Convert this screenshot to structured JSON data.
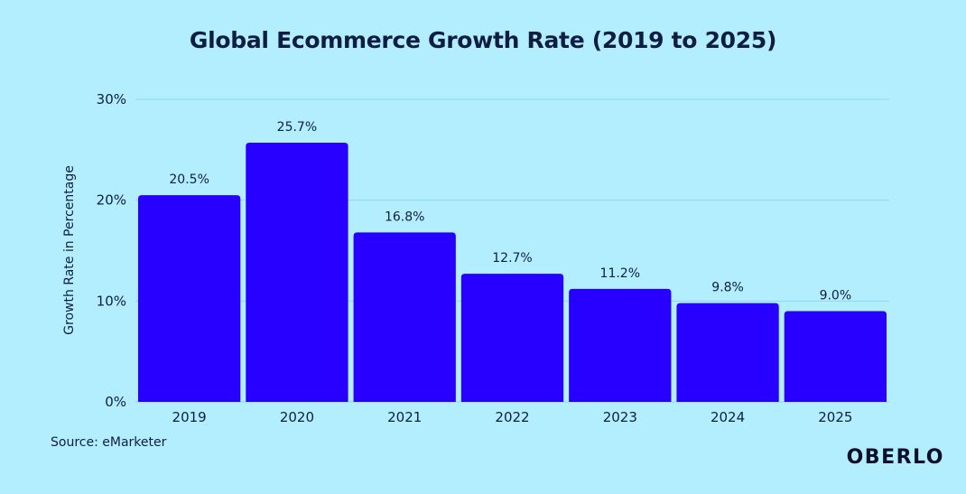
{
  "chart_data": {
    "type": "bar",
    "title": "Global Ecommerce Growth Rate (2019 to 2025)",
    "categories": [
      "2019",
      "2020",
      "2021",
      "2022",
      "2023",
      "2024",
      "2025"
    ],
    "values": [
      20.5,
      25.7,
      16.8,
      12.7,
      11.2,
      9.8,
      9.0
    ],
    "data_labels": [
      "20.5%",
      "25.7%",
      "16.8%",
      "12.7%",
      "11.2%",
      "9.8%",
      "9.0%"
    ],
    "xlabel": "",
    "ylabel": "Growth Rate in Percentage",
    "ylim": [
      0,
      30
    ],
    "yticks": [
      0,
      10,
      20,
      30
    ],
    "ytick_labels": [
      "0%",
      "10%",
      "20%",
      "30%"
    ],
    "grid": true,
    "bar_color": "#2800ff"
  },
  "footer": {
    "source": "Source: eMarketer",
    "brand": "OBERLO"
  },
  "colors": {
    "background": "#b3eefe",
    "gridline": "#8fd6ee"
  }
}
